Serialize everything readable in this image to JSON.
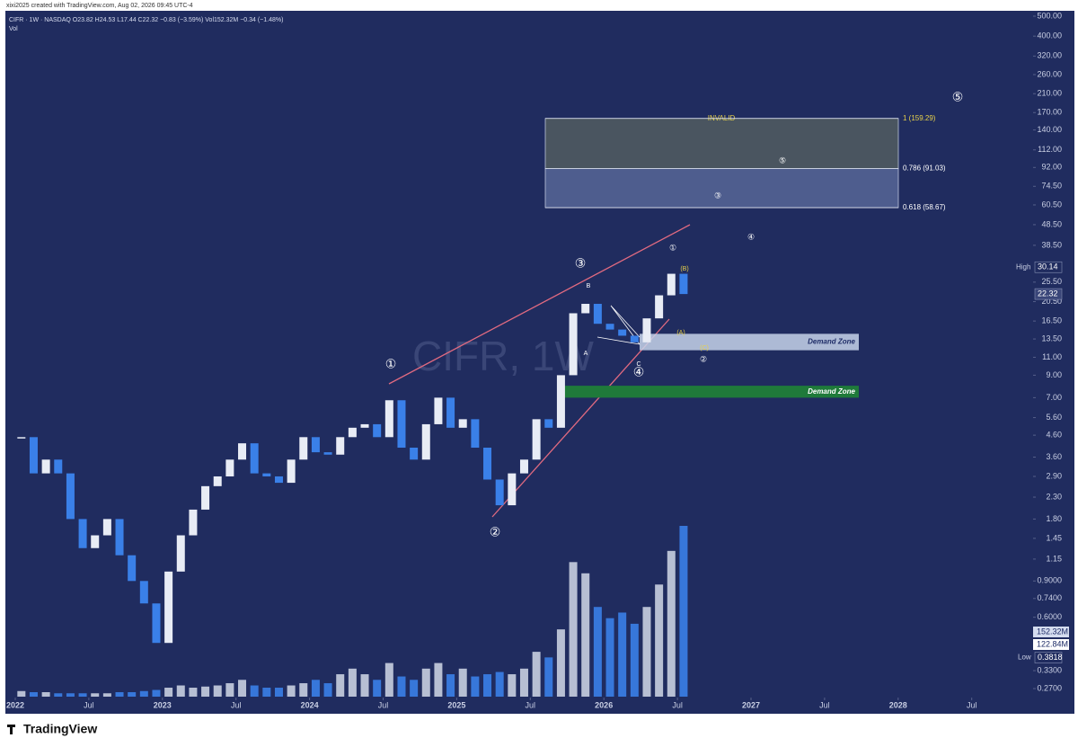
{
  "header": {
    "author_line": "xixi2025 created with TradingView.com, Aug 02, 2026 09:45 UTC-4",
    "symbol_line": "CIFR · 1W · NASDAQ  O23.82  H24.53  L17.44  C22.32  −0.83 (−3.59%)  Vol152.32M  −0.34 (−1.48%)",
    "vol_label": "Vol"
  },
  "watermark": "CIFR, 1W",
  "logo": "TradingView",
  "chart_data": {
    "type": "candlestick",
    "log_scale": true,
    "ylim": [
      0.27,
      500
    ],
    "yticks": [
      {
        "value": 500,
        "label": "500.00"
      },
      {
        "value": 400,
        "label": "400.00"
      },
      {
        "value": 320,
        "label": "320.00"
      },
      {
        "value": 260,
        "label": "260.00"
      },
      {
        "value": 210,
        "label": "210.00"
      },
      {
        "value": 170,
        "label": "170.00"
      },
      {
        "value": 140,
        "label": "140.00"
      },
      {
        "value": 112,
        "label": "112.00"
      },
      {
        "value": 92,
        "label": "92.00"
      },
      {
        "value": 74.5,
        "label": "74.50"
      },
      {
        "value": 60.5,
        "label": "60.50"
      },
      {
        "value": 48.5,
        "label": "48.50"
      },
      {
        "value": 38.5,
        "label": "38.50"
      },
      {
        "value": 25.5,
        "label": "25.50"
      },
      {
        "value": 20.5,
        "label": "20.50"
      },
      {
        "value": 16.5,
        "label": "16.50"
      },
      {
        "value": 13.5,
        "label": "13.50"
      },
      {
        "value": 11,
        "label": "11.00"
      },
      {
        "value": 9,
        "label": "9.00"
      },
      {
        "value": 7,
        "label": "7.00"
      },
      {
        "value": 5.6,
        "label": "5.60"
      },
      {
        "value": 4.6,
        "label": "4.60"
      },
      {
        "value": 3.6,
        "label": "3.60"
      },
      {
        "value": 2.9,
        "label": "2.90"
      },
      {
        "value": 2.3,
        "label": "2.30"
      },
      {
        "value": 1.8,
        "label": "1.80"
      },
      {
        "value": 1.45,
        "label": "1.45"
      },
      {
        "value": 1.15,
        "label": "1.15"
      },
      {
        "value": 0.9,
        "label": "0.9000"
      },
      {
        "value": 0.74,
        "label": "0.7400"
      },
      {
        "value": 0.6,
        "label": "0.6000"
      },
      {
        "value": 0.33,
        "label": "0.3300"
      },
      {
        "value": 0.27,
        "label": "0.2700"
      }
    ],
    "xticks": [
      {
        "value": "2022-01",
        "label": "2022"
      },
      {
        "value": "2022-07",
        "label": "Jul"
      },
      {
        "value": "2023-01",
        "label": "2023"
      },
      {
        "value": "2023-07",
        "label": "Jul"
      },
      {
        "value": "2024-01",
        "label": "2024"
      },
      {
        "value": "2024-07",
        "label": "Jul"
      },
      {
        "value": "2025-01",
        "label": "2025"
      },
      {
        "value": "2025-07",
        "label": "Jul"
      },
      {
        "value": "2026-01",
        "label": "2026"
      },
      {
        "value": "2026-07",
        "label": "Jul"
      },
      {
        "value": "2027-01",
        "label": "2027"
      },
      {
        "value": "2027-07",
        "label": "Jul"
      },
      {
        "value": "2028-01",
        "label": "2028"
      },
      {
        "value": "2028-07",
        "label": "Jul"
      }
    ],
    "x": [
      "2022-01",
      "2022-02",
      "2022-03",
      "2022-04",
      "2022-05",
      "2022-06",
      "2022-07",
      "2022-08",
      "2022-09",
      "2022-10",
      "2022-11",
      "2022-12",
      "2023-01",
      "2023-02",
      "2023-03",
      "2023-04",
      "2023-05",
      "2023-06",
      "2023-07",
      "2023-08",
      "2023-09",
      "2023-10",
      "2023-11",
      "2023-12",
      "2024-01",
      "2024-02",
      "2024-03",
      "2024-04",
      "2024-05",
      "2024-06",
      "2024-07",
      "2024-08",
      "2024-09",
      "2024-10",
      "2024-11",
      "2024-12",
      "2025-01",
      "2025-02",
      "2025-03",
      "2025-04",
      "2025-05",
      "2025-06",
      "2025-07",
      "2025-08",
      "2025-09",
      "2025-10",
      "2025-11",
      "2025-12",
      "2026-01",
      "2026-02",
      "2026-03",
      "2026-04",
      "2026-05",
      "2026-06",
      "2026-07"
    ],
    "series": [
      {
        "name": "Close",
        "color": "#e8ecf5",
        "down_color": "#3a80e8",
        "values": [
          4.5,
          3.0,
          3.5,
          3.0,
          1.8,
          1.3,
          1.5,
          1.8,
          1.2,
          0.9,
          0.7,
          0.45,
          1.0,
          1.5,
          2.0,
          2.6,
          2.9,
          3.5,
          4.2,
          3.0,
          2.9,
          2.7,
          3.5,
          4.5,
          3.8,
          3.7,
          4.5,
          5.0,
          5.2,
          4.5,
          6.8,
          4.0,
          3.5,
          5.2,
          7.0,
          5.0,
          5.5,
          4.0,
          2.8,
          2.1,
          3.0,
          3.5,
          5.5,
          5.0,
          9.0,
          18,
          20,
          16,
          15,
          14,
          13,
          17,
          22,
          28,
          22.32
        ]
      },
      {
        "name": "Volume",
        "color": "#3a80e8",
        "values": [
          5,
          4,
          4,
          3,
          3,
          3,
          3,
          3,
          4,
          4,
          5,
          6,
          8,
          10,
          8,
          9,
          10,
          12,
          15,
          10,
          8,
          8,
          10,
          12,
          15,
          12,
          20,
          25,
          20,
          15,
          30,
          18,
          15,
          25,
          30,
          20,
          25,
          18,
          20,
          22,
          20,
          25,
          40,
          35,
          60,
          120,
          110,
          80,
          70,
          75,
          65,
          80,
          100,
          130,
          152.32
        ]
      }
    ],
    "zones": [
      {
        "label": "INVALID",
        "range": [
          91.03,
          159.29
        ],
        "color": "#4a5560"
      },
      {
        "range": [
          58.67,
          91.03
        ],
        "color": "#4e5d8e"
      },
      {
        "label": "Demand Zone",
        "range": [
          11.9,
          14.3
        ],
        "color": "#c7d3ea"
      },
      {
        "label": "Demand Zone",
        "range": [
          7.0,
          8.0
        ],
        "color": "#1f7a3a"
      }
    ],
    "fib_levels": [
      {
        "value": 159.29,
        "label": "1 (159.29)"
      },
      {
        "value": 91.03,
        "label": "0.786 (91.03)"
      },
      {
        "value": 58.67,
        "label": "0.618 (58.67)"
      }
    ],
    "wave_labels": [
      "①",
      "②",
      "③",
      "④",
      "⑤",
      "①",
      "②",
      "③",
      "④",
      "⑤",
      "A",
      "B",
      "C",
      "(A)",
      "(B)",
      "(C)"
    ],
    "price_tags": [
      {
        "label": "High",
        "value": 30.14
      },
      {
        "label": "Low",
        "value": 0.3818
      },
      {
        "value": 22.32
      }
    ],
    "volume_tags": [
      {
        "value": 152.32,
        "label": "152.32M"
      },
      {
        "value": 122.84,
        "label": "122.84M"
      }
    ]
  }
}
